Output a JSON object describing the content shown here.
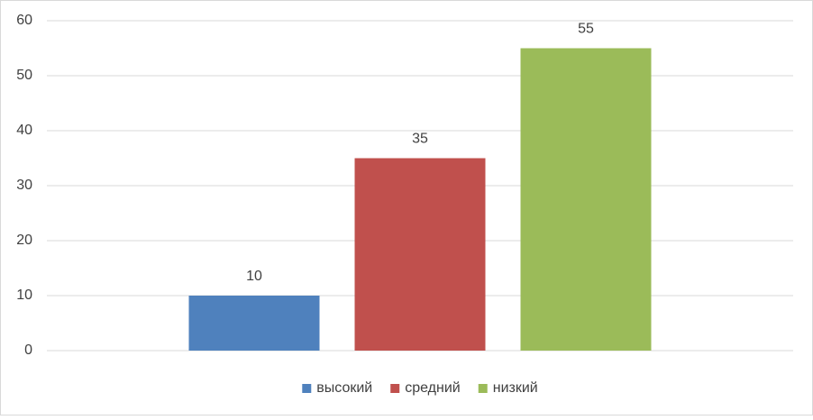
{
  "chart_data": {
    "type": "bar",
    "categories": [
      null
    ],
    "series": [
      {
        "name": "высокий",
        "color": "#4f81bd",
        "values": [
          10
        ]
      },
      {
        "name": "средний",
        "color": "#c0504d",
        "values": [
          35
        ]
      },
      {
        "name": "низкий",
        "color": "#9bbb59",
        "values": [
          55
        ]
      }
    ],
    "ylim": [
      0,
      60
    ],
    "yticks": [
      0,
      10,
      20,
      30,
      40,
      50,
      60
    ],
    "grid": true,
    "legend": "bottom"
  }
}
